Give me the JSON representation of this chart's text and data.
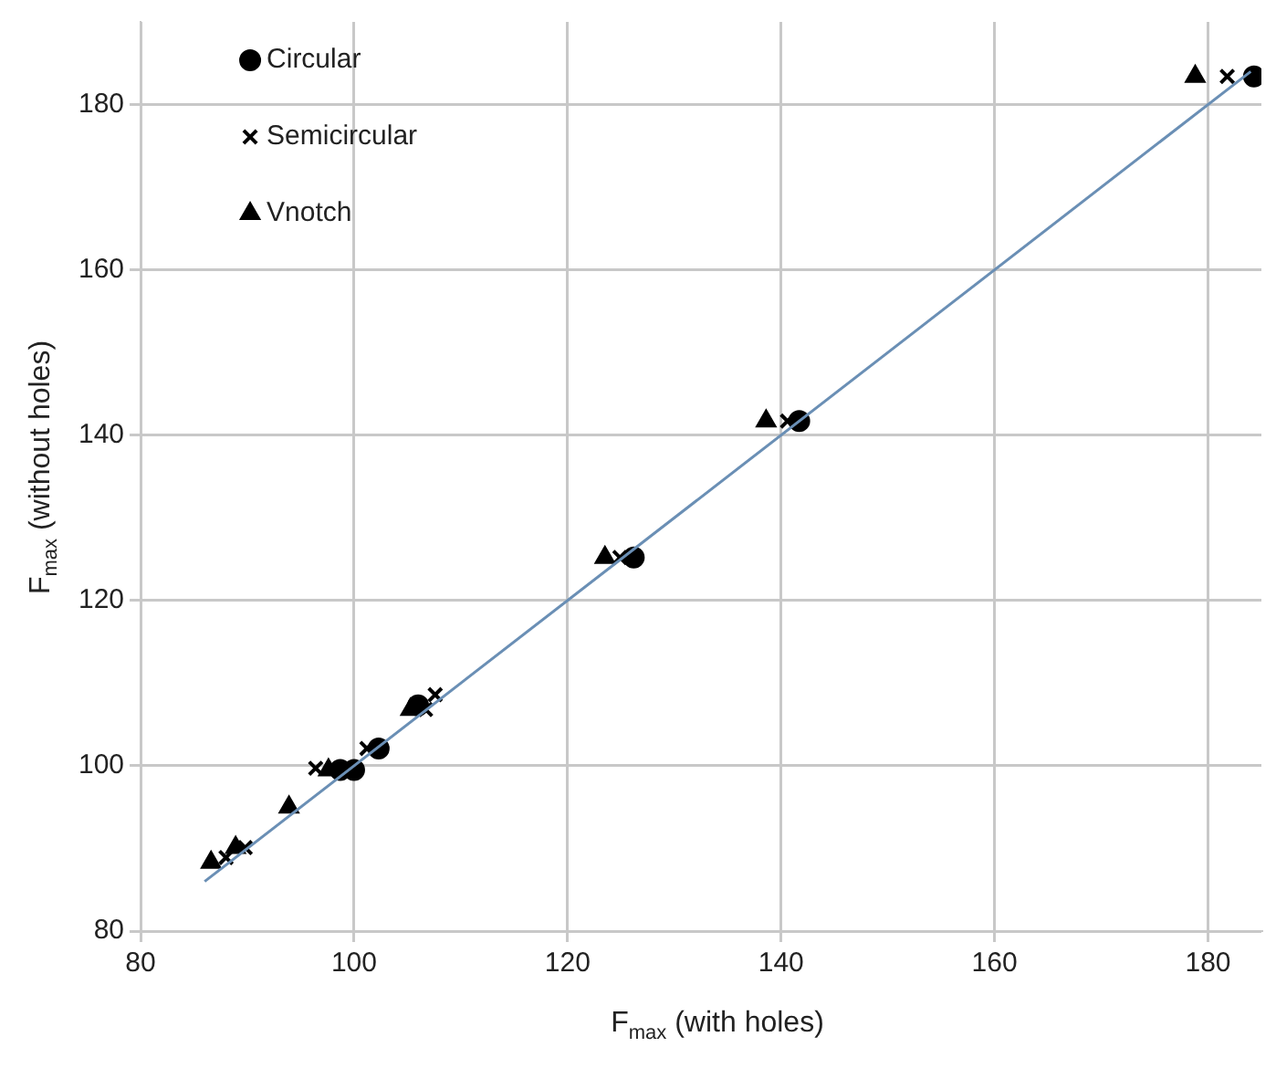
{
  "chart_data": {
    "type": "scatter",
    "xlabel": "F$_{max}$ (with holes)",
    "ylabel": "F$_{max}$ (without holes)",
    "xlim": [
      80,
      185
    ],
    "ylim": [
      80,
      190
    ],
    "xticks": [
      80,
      100,
      120,
      140,
      160,
      180
    ],
    "yticks": [
      80,
      100,
      120,
      140,
      160,
      180
    ],
    "grid": true,
    "legend": "top left",
    "series": [
      {
        "name": "Circular",
        "color": "#000000",
        "marker": "circle",
        "x": [
          98.7,
          100.0,
          102.3,
          106.0,
          126.2,
          141.7,
          184.3
        ],
        "values": [
          99.5,
          99.5,
          102.1,
          107.3,
          125.2,
          141.7,
          183.4
        ]
      },
      {
        "name": "Semicircular",
        "color": "#000000",
        "marker": "cross",
        "x": [
          88.0,
          89.8,
          96.4,
          101.2,
          106.7,
          107.6,
          124.9,
          140.6,
          181.8
        ],
        "values": [
          88.9,
          90.1,
          99.7,
          102.1,
          106.8,
          108.6,
          125.2,
          141.7,
          183.4
        ]
      },
      {
        "name": "Vnotch",
        "color": "#000000",
        "marker": "triangle",
        "x": [
          86.6,
          88.9,
          93.9,
          97.6,
          105.3,
          123.5,
          138.6,
          178.8
        ],
        "values": [
          88.3,
          90.1,
          95.0,
          99.5,
          106.8,
          125.2,
          141.7,
          183.4
        ]
      },
      {
        "type": "line",
        "color": "#6a8fb5",
        "marker": "none",
        "x": [
          86,
          184
        ],
        "values": [
          86,
          184
        ]
      }
    ]
  }
}
